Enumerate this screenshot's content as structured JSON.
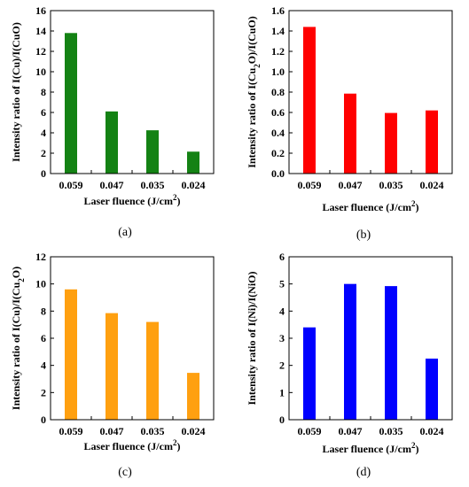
{
  "chart_data": [
    {
      "type": "bar",
      "panel": "(a)",
      "categories": [
        "0.059",
        "0.047",
        "0.035",
        "0.024"
      ],
      "values": [
        13.8,
        6.1,
        4.25,
        2.15
      ],
      "ylabel": "Intensity ratio of I(Cu)/I(CuO)",
      "xlabel": "Laser fluence (J/cm²)",
      "ylim": [
        0,
        16
      ],
      "yticks": [
        "0",
        "2",
        "4",
        "6",
        "8",
        "10",
        "12",
        "14",
        "16"
      ],
      "color": "#148214",
      "grid": false,
      "legend": "none"
    },
    {
      "type": "bar",
      "panel": "(b)",
      "categories": [
        "0.059",
        "0.047",
        "0.035",
        "0.024"
      ],
      "values": [
        1.44,
        0.785,
        0.595,
        0.62
      ],
      "ylabel": "Intensity ratio of I(Cu₂O)/I(CuO)",
      "xlabel": "Laser fluence (J/cm²)",
      "ylim": [
        0,
        1.6
      ],
      "yticks": [
        "0.0",
        "0.2",
        "0.4",
        "0.6",
        "0.8",
        "1.0",
        "1.2",
        "1.4",
        "1.6"
      ],
      "color": "#ff0000",
      "grid": false,
      "legend": "none"
    },
    {
      "type": "bar",
      "panel": "(c)",
      "categories": [
        "0.059",
        "0.047",
        "0.035",
        "0.024"
      ],
      "values": [
        9.6,
        7.85,
        7.2,
        3.45
      ],
      "ylabel": "Intensity ratio of I(Cu)/I(Cu₂O)",
      "xlabel": "Laser fluence (J/cm²)",
      "ylim": [
        0,
        12
      ],
      "yticks": [
        "0",
        "2",
        "4",
        "6",
        "8",
        "10",
        "12"
      ],
      "color": "#ffa010",
      "grid": false,
      "legend": "none"
    },
    {
      "type": "bar",
      "panel": "(d)",
      "categories": [
        "0.059",
        "0.047",
        "0.035",
        "0.024"
      ],
      "values": [
        3.4,
        5.0,
        4.92,
        2.25
      ],
      "ylabel": "Intensity ratio of I(Ni)/I(NiO)",
      "xlabel": "Laser fluence (J/cm²)",
      "ylim": [
        0,
        6
      ],
      "yticks": [
        "0",
        "1",
        "2",
        "3",
        "4",
        "5",
        "6"
      ],
      "color": "#0000ff",
      "grid": false,
      "legend": "none"
    }
  ]
}
